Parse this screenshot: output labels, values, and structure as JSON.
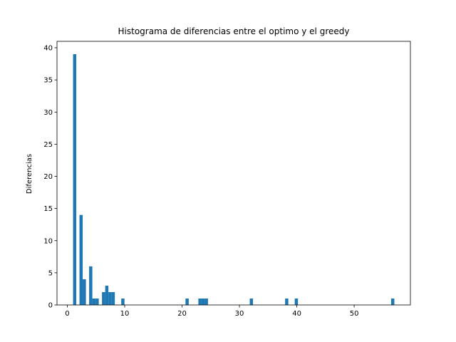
{
  "chart_data": {
    "type": "bar",
    "title": "Histograma de diferencias entre el optimo y el greedy",
    "xlabel": "",
    "ylabel": "Diferencias",
    "xlim": [
      -1.8,
      59.8
    ],
    "ylim": [
      0,
      41
    ],
    "x_ticks": [
      0,
      10,
      20,
      30,
      40,
      50
    ],
    "y_ticks": [
      0,
      5,
      10,
      15,
      20,
      25,
      30,
      35,
      40
    ],
    "grid": false,
    "legend": "none",
    "bar_color": "#1f77b4",
    "bins": [
      {
        "x0": 1.0,
        "x1": 1.56,
        "count": 39
      },
      {
        "x0": 1.56,
        "x1": 2.12,
        "count": 0
      },
      {
        "x0": 2.12,
        "x1": 2.68,
        "count": 14
      },
      {
        "x0": 2.68,
        "x1": 3.24,
        "count": 4
      },
      {
        "x0": 3.8,
        "x1": 4.36,
        "count": 6
      },
      {
        "x0": 4.36,
        "x1": 4.92,
        "count": 1
      },
      {
        "x0": 4.92,
        "x1": 5.48,
        "count": 1
      },
      {
        "x0": 6.04,
        "x1": 6.6,
        "count": 2
      },
      {
        "x0": 6.6,
        "x1": 7.16,
        "count": 3
      },
      {
        "x0": 7.16,
        "x1": 7.72,
        "count": 2
      },
      {
        "x0": 7.72,
        "x1": 8.28,
        "count": 2
      },
      {
        "x0": 9.4,
        "x1": 9.96,
        "count": 1
      },
      {
        "x0": 20.6,
        "x1": 21.16,
        "count": 1
      },
      {
        "x0": 22.84,
        "x1": 23.4,
        "count": 1
      },
      {
        "x0": 23.4,
        "x1": 23.96,
        "count": 1
      },
      {
        "x0": 23.96,
        "x1": 24.52,
        "count": 1
      },
      {
        "x0": 31.8,
        "x1": 32.36,
        "count": 1
      },
      {
        "x0": 37.96,
        "x1": 38.52,
        "count": 1
      },
      {
        "x0": 39.64,
        "x1": 40.2,
        "count": 1
      },
      {
        "x0": 56.44,
        "x1": 57.0,
        "count": 1
      }
    ]
  }
}
